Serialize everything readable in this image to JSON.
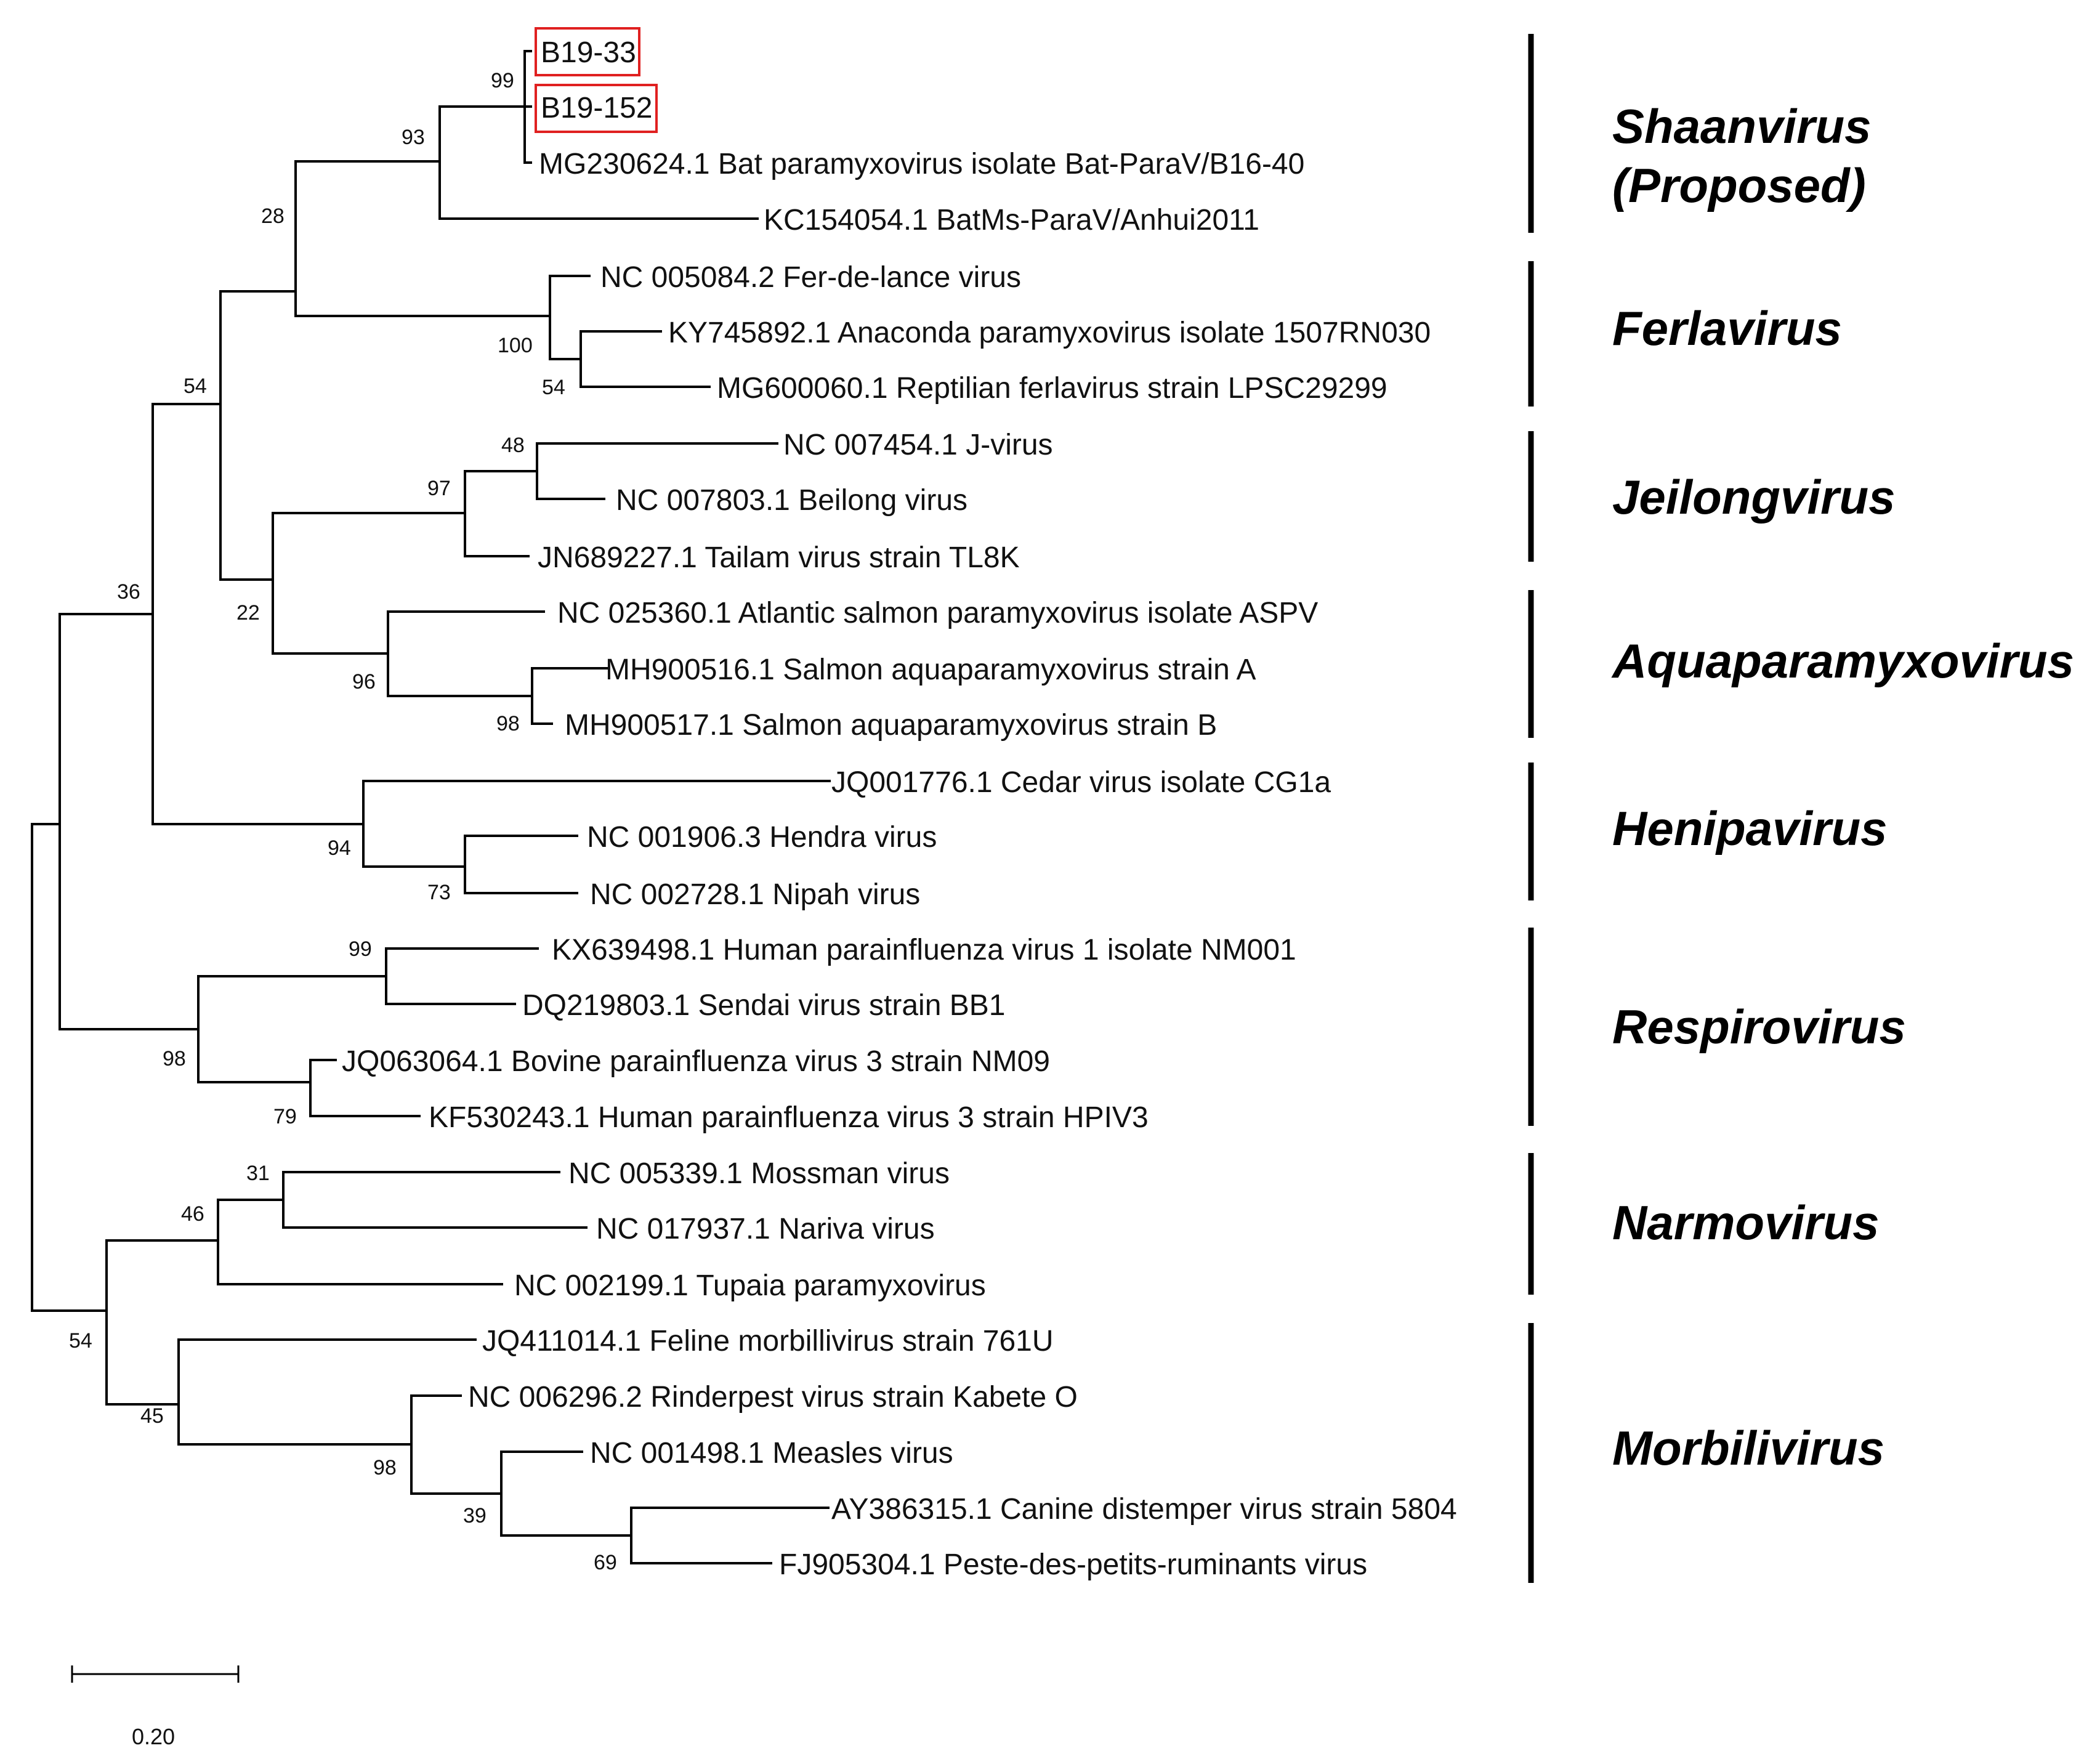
{
  "figure": {
    "scale_bar_label": "0.20",
    "highlight_color": "#e02020"
  },
  "leaves": [
    {
      "id": "b19_33",
      "label": "B19-33",
      "highlighted": true
    },
    {
      "id": "b19_152",
      "label": "B19-152",
      "highlighted": true
    },
    {
      "id": "mg230624",
      "label": "MG230624.1 Bat paramyxovirus isolate Bat-ParaV/B16-40"
    },
    {
      "id": "kc154054",
      "label": "KC154054.1 BatMs-ParaV/Anhui2011"
    },
    {
      "id": "nc005084",
      "label": "NC 005084.2 Fer-de-lance virus"
    },
    {
      "id": "ky745892",
      "label": "KY745892.1 Anaconda paramyxovirus isolate 1507RN030"
    },
    {
      "id": "mg600060",
      "label": "MG600060.1 Reptilian ferlavirus strain LPSC29299"
    },
    {
      "id": "nc007454",
      "label": "NC 007454.1 J-virus"
    },
    {
      "id": "nc007803",
      "label": "NC 007803.1 Beilong virus"
    },
    {
      "id": "jn689227",
      "label": "JN689227.1 Tailam virus strain TL8K"
    },
    {
      "id": "nc025360",
      "label": "NC 025360.1 Atlantic salmon paramyxovirus isolate ASPV"
    },
    {
      "id": "mh900516",
      "label": "MH900516.1 Salmon aquaparamyxovirus strain A"
    },
    {
      "id": "mh900517",
      "label": "MH900517.1 Salmon aquaparamyxovirus strain B"
    },
    {
      "id": "jq001776",
      "label": "JQ001776.1 Cedar virus isolate CG1a"
    },
    {
      "id": "nc001906",
      "label": "NC 001906.3 Hendra virus"
    },
    {
      "id": "nc002728",
      "label": "NC 002728.1 Nipah virus"
    },
    {
      "id": "kx639498",
      "label": "KX639498.1 Human parainfluenza virus 1 isolate NM001"
    },
    {
      "id": "dq219803",
      "label": "DQ219803.1 Sendai virus strain BB1"
    },
    {
      "id": "jq063064",
      "label": "JQ063064.1 Bovine parainfluenza virus 3 strain NM09"
    },
    {
      "id": "kf530243",
      "label": "KF530243.1 Human parainfluenza virus 3 strain HPIV3"
    },
    {
      "id": "nc005339",
      "label": "NC 005339.1 Mossman virus"
    },
    {
      "id": "nc017937",
      "label": "NC 017937.1 Nariva virus"
    },
    {
      "id": "nc002199",
      "label": "NC 002199.1 Tupaia paramyxovirus"
    },
    {
      "id": "jq411014",
      "label": "JQ411014.1 Feline morbillivirus strain 761U"
    },
    {
      "id": "nc006296",
      "label": "NC 006296.2 Rinderpest virus strain Kabete O"
    },
    {
      "id": "nc001498",
      "label": "NC 001498.1 Measles virus"
    },
    {
      "id": "ay386315",
      "label": "AY386315.1 Canine distemper virus strain 5804"
    },
    {
      "id": "fj905304",
      "label": "FJ905304.1 Peste-des-petits-ruminants virus"
    }
  ],
  "bootstrap_values": [
    "99",
    "93",
    "28",
    "100",
    "54",
    "54",
    "48",
    "97",
    "22",
    "96",
    "98",
    "36",
    "94",
    "73",
    "99",
    "98",
    "79",
    "31",
    "46",
    "54",
    "45",
    "98",
    "39",
    "69"
  ],
  "clades": [
    {
      "name_line1": "Shaanvirus",
      "name_line2": "(Proposed)"
    },
    {
      "name_line1": "Ferlavirus"
    },
    {
      "name_line1": "Jeilongvirus"
    },
    {
      "name_line1": "Aquaparamyxovirus"
    },
    {
      "name_line1": "Henipavirus"
    },
    {
      "name_line1": "Respirovirus"
    },
    {
      "name_line1": "Narmovirus"
    },
    {
      "name_line1": "Morbilivirus"
    }
  ]
}
